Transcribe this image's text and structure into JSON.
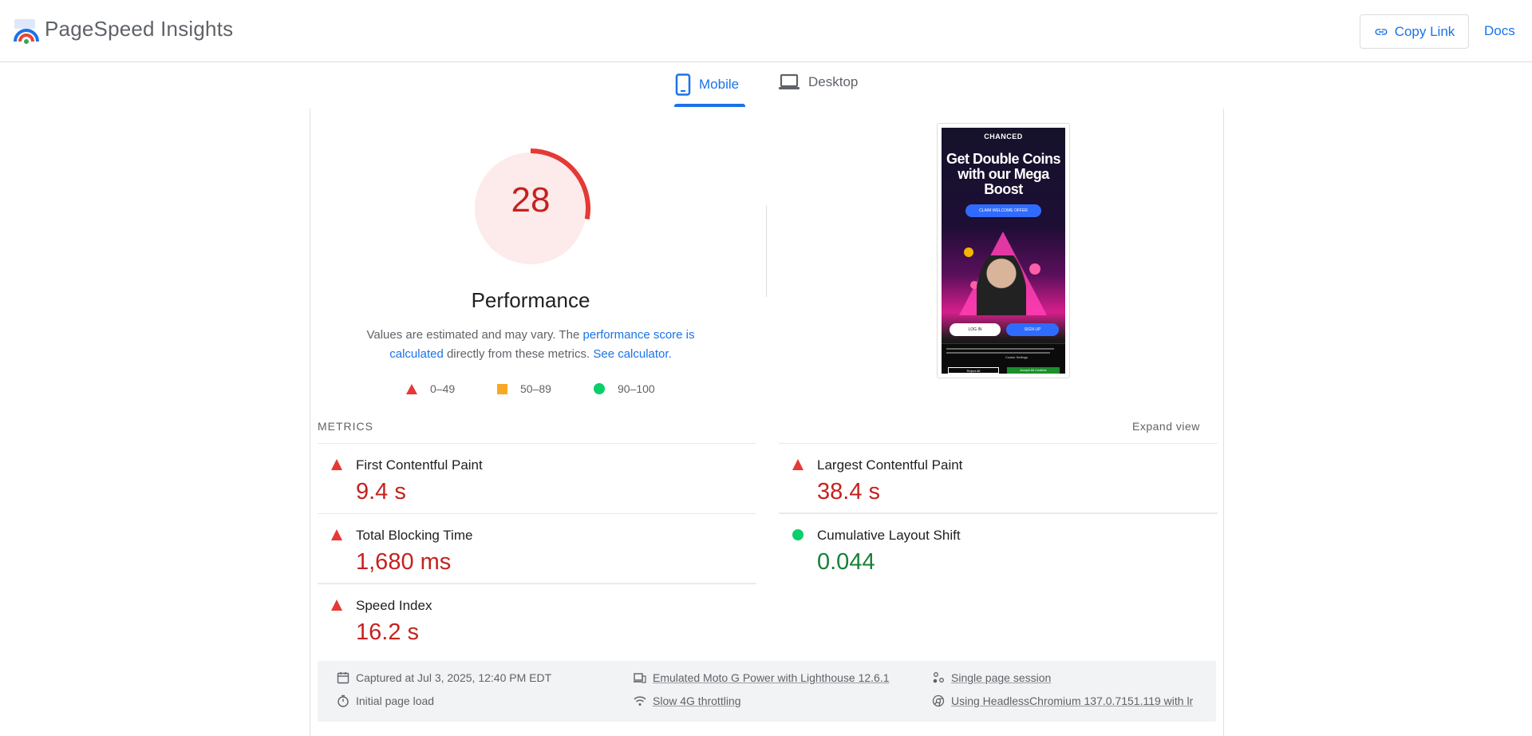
{
  "header": {
    "brand": "PageSpeed Insights",
    "copy_link": "Copy Link",
    "docs": "Docs"
  },
  "tabs": [
    {
      "label": "Mobile",
      "active": true
    },
    {
      "label": "Desktop",
      "active": false
    }
  ],
  "score": {
    "value": "28",
    "fraction": 0.28,
    "category": "Performance",
    "color": "#c5221f",
    "desc_prefix": "Values are estimated and may vary. The ",
    "desc_link1": "performance score is calculated",
    "desc_mid": " directly from these metrics. ",
    "desc_link2": "See calculator."
  },
  "legend": [
    {
      "shape": "triangle",
      "label": "0–49",
      "color": "#e53935"
    },
    {
      "shape": "square",
      "label": "50–89",
      "color": "#f9a825"
    },
    {
      "shape": "circle",
      "label": "90–100",
      "color": "#0cce6b"
    }
  ],
  "screenshot": {
    "logo": "CHANCED",
    "headline": "Get Double Coins with our Mega Boost",
    "cta": "CLAIM WELCOME OFFER",
    "login": "LOG IN",
    "signup": "SIGN UP",
    "cookie_settings": "Cookie Settings",
    "reject": "Reject All",
    "accept": "Accept All Cookies"
  },
  "metrics": {
    "label": "METRICS",
    "expand": "Expand view",
    "left": [
      {
        "name": "First Contentful Paint",
        "value": "9.4 s",
        "status": "poor"
      },
      {
        "name": "Total Blocking Time",
        "value": "1,680 ms",
        "status": "poor"
      },
      {
        "name": "Speed Index",
        "value": "16.2 s",
        "status": "poor"
      }
    ],
    "right": [
      {
        "name": "Largest Contentful Paint",
        "value": "38.4 s",
        "status": "poor"
      },
      {
        "name": "Cumulative Layout Shift",
        "value": "0.044",
        "status": "good"
      }
    ]
  },
  "info": {
    "captured": "Captured at Jul 3, 2025, 12:40 PM EDT",
    "initial": "Initial page load",
    "emulated": "Emulated Moto G Power with Lighthouse 12.6.1",
    "throttling": "Slow 4G throttling",
    "session": "Single page session",
    "browser": "Using HeadlessChromium 137.0.7151.119 with lr"
  }
}
